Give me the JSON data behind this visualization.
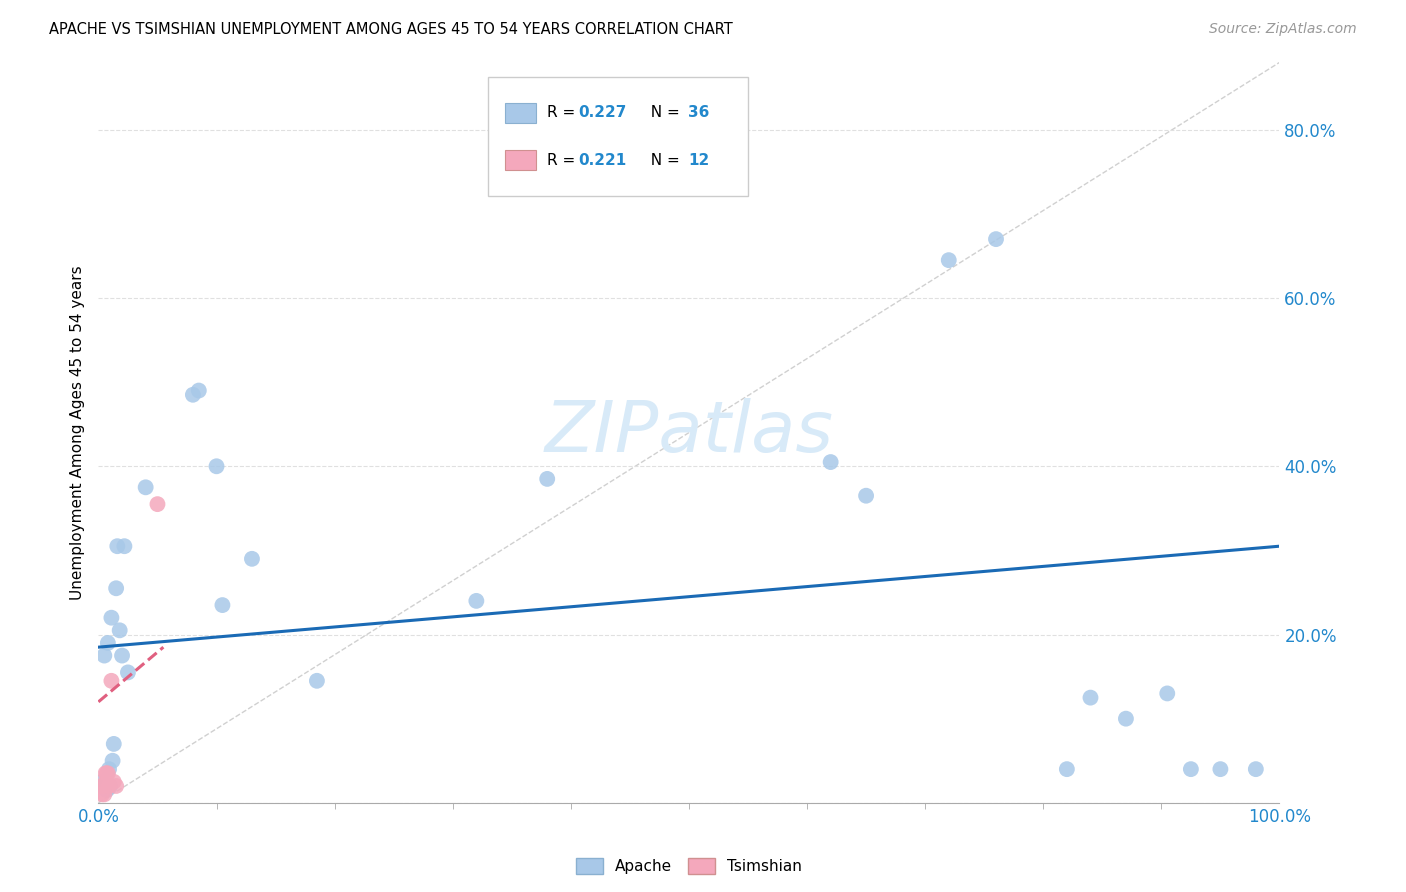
{
  "title": "APACHE VS TSIMSHIAN UNEMPLOYMENT AMONG AGES 45 TO 54 YEARS CORRELATION CHART",
  "source": "Source: ZipAtlas.com",
  "ylabel": "Unemployment Among Ages 45 to 54 years",
  "R_apache": "0.227",
  "N_apache": "36",
  "R_tsimshian": "0.221",
  "N_tsimshian": "12",
  "apache_color": "#a8c8e8",
  "tsimshian_color": "#f4a8bc",
  "trendline_apache_color": "#1a6ab5",
  "trendline_tsimshian_color": "#e06080",
  "diagonal_color": "#d0d0d0",
  "grid_color": "#e0e0e0",
  "axis_label_color": "#2288cc",
  "apache_x": [
    0.003,
    0.005,
    0.006,
    0.007,
    0.008,
    0.009,
    0.01,
    0.011,
    0.012,
    0.013,
    0.015,
    0.016,
    0.018,
    0.02,
    0.022,
    0.025,
    0.04,
    0.08,
    0.085,
    0.1,
    0.105,
    0.13,
    0.185,
    0.32,
    0.38,
    0.62,
    0.65,
    0.72,
    0.76,
    0.82,
    0.84,
    0.87,
    0.905,
    0.925,
    0.95,
    0.98
  ],
  "apache_y": [
    0.025,
    0.175,
    0.02,
    0.015,
    0.19,
    0.04,
    0.02,
    0.22,
    0.05,
    0.07,
    0.255,
    0.305,
    0.205,
    0.175,
    0.305,
    0.155,
    0.375,
    0.485,
    0.49,
    0.4,
    0.235,
    0.29,
    0.145,
    0.24,
    0.385,
    0.405,
    0.365,
    0.645,
    0.67,
    0.04,
    0.125,
    0.1,
    0.13,
    0.04,
    0.04,
    0.04
  ],
  "tsimshian_x": [
    0.002,
    0.003,
    0.004,
    0.005,
    0.006,
    0.007,
    0.008,
    0.009,
    0.011,
    0.013,
    0.015,
    0.05
  ],
  "tsimshian_y": [
    0.02,
    0.01,
    0.02,
    0.01,
    0.035,
    0.035,
    0.035,
    0.02,
    0.145,
    0.025,
    0.02,
    0.355
  ],
  "xlim": [
    0.0,
    1.0
  ],
  "ylim": [
    0.0,
    0.88
  ],
  "apache_trend_x": [
    0.0,
    1.0
  ],
  "apache_trend_y": [
    0.185,
    0.305
  ],
  "tsimshian_trend_x": [
    0.0,
    0.055
  ],
  "tsimshian_trend_y": [
    0.12,
    0.185
  ],
  "yticks": [
    0.0,
    0.2,
    0.4,
    0.6,
    0.8
  ],
  "ytick_labels": [
    "",
    "20.0%",
    "40.0%",
    "60.0%",
    "80.0%"
  ],
  "xtick_labels_show": [
    "0.0%",
    "100.0%"
  ],
  "minor_xticks": [
    0.1,
    0.2,
    0.3,
    0.4,
    0.5,
    0.6,
    0.7,
    0.8,
    0.9
  ],
  "scatter_size": 130
}
